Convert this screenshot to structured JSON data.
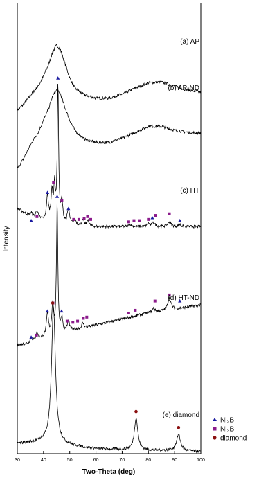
{
  "chart_data": {
    "type": "line",
    "title": "",
    "xlabel": "Two-Theta (deg)",
    "ylabel": "Intensity",
    "xlim": [
      30,
      100
    ],
    "x_ticks": [
      30,
      40,
      50,
      60,
      70,
      80,
      90,
      100
    ],
    "grid": false,
    "legend_position": "bottom-right",
    "legend": [
      {
        "label": "Ni₂B",
        "marker": "triangle",
        "color": "#1a1aa0"
      },
      {
        "label": "Ni₃B",
        "marker": "square",
        "color": "#8b1a8b"
      },
      {
        "label": "diamond",
        "marker": "circle",
        "color": "#8b1010"
      }
    ],
    "series": [
      {
        "name": "(a) AP",
        "baseline": 8.55,
        "points": [
          [
            30,
            0.0
          ],
          [
            32,
            0.12
          ],
          [
            34,
            0.28
          ],
          [
            36,
            0.45
          ],
          [
            38,
            0.6
          ],
          [
            40,
            0.85
          ],
          [
            42,
            1.15
          ],
          [
            43.5,
            1.45
          ],
          [
            45,
            1.62
          ],
          [
            46.5,
            1.5
          ],
          [
            48,
            1.2
          ],
          [
            50,
            0.8
          ],
          [
            52,
            0.55
          ],
          [
            55,
            0.4
          ],
          [
            60,
            0.3
          ],
          [
            65,
            0.3
          ],
          [
            70,
            0.4
          ],
          [
            75,
            0.55
          ],
          [
            80,
            0.68
          ],
          [
            85,
            0.7
          ],
          [
            90,
            0.6
          ],
          [
            95,
            0.5
          ],
          [
            100,
            0.45
          ]
        ]
      },
      {
        "name": "(b) AP-ND",
        "baseline": 7.1,
        "points": [
          [
            30,
            0.0
          ],
          [
            32,
            0.2
          ],
          [
            34,
            0.45
          ],
          [
            36,
            0.7
          ],
          [
            38,
            0.9
          ],
          [
            40,
            1.2
          ],
          [
            42,
            1.5
          ],
          [
            43.5,
            1.8
          ],
          [
            45,
            1.95
          ],
          [
            46.5,
            1.85
          ],
          [
            48,
            1.55
          ],
          [
            50,
            1.2
          ],
          [
            52,
            0.95
          ],
          [
            55,
            0.75
          ],
          [
            60,
            0.65
          ],
          [
            65,
            0.65
          ],
          [
            70,
            0.75
          ],
          [
            75,
            0.9
          ],
          [
            80,
            1.05
          ],
          [
            85,
            1.05
          ],
          [
            90,
            0.95
          ],
          [
            95,
            0.9
          ],
          [
            100,
            0.88
          ]
        ]
      },
      {
        "name": "(c) HT",
        "baseline": 5.55,
        "background": [
          [
            30,
            0.55
          ],
          [
            35,
            0.35
          ],
          [
            40,
            0.25
          ],
          [
            50,
            0.15
          ],
          [
            60,
            0.1
          ],
          [
            80,
            0.1
          ],
          [
            100,
            0.1
          ]
        ],
        "peaks": [
          [
            35.3,
            0.1,
            0.5
          ],
          [
            37.5,
            0.2,
            0.5
          ],
          [
            41.5,
            0.6,
            0.45
          ],
          [
            43.2,
            0.7,
            0.4
          ],
          [
            44.2,
            0.85,
            0.35
          ],
          [
            45.5,
            3.4,
            0.3
          ],
          [
            47.0,
            0.5,
            0.4
          ],
          [
            49.5,
            0.35,
            0.5
          ],
          [
            52.0,
            0.12,
            0.5
          ],
          [
            55.0,
            0.12,
            0.5
          ],
          [
            57.0,
            0.15,
            0.4
          ],
          [
            73.0,
            0.05,
            0.6
          ],
          [
            80.0,
            0.08,
            0.6
          ],
          [
            82.0,
            0.1,
            0.6
          ],
          [
            88.0,
            0.12,
            0.7
          ],
          [
            92.0,
            0.05,
            0.6
          ]
        ],
        "markers": [
          {
            "x": 35.3,
            "y": 0.25,
            "type": "triangle"
          },
          {
            "x": 37.5,
            "y": 0.35,
            "type": "square"
          },
          {
            "x": 41.5,
            "y": 0.95,
            "type": "triangle"
          },
          {
            "x": 43.8,
            "y": 1.2,
            "type": "square"
          },
          {
            "x": 45.5,
            "y": 3.8,
            "type": "triangle"
          },
          {
            "x": 47.0,
            "y": 0.75,
            "type": "square"
          },
          {
            "x": 49.5,
            "y": 0.55,
            "type": "triangle"
          },
          {
            "x": 51.5,
            "y": 0.28,
            "type": "square"
          },
          {
            "x": 53.5,
            "y": 0.28,
            "type": "square"
          },
          {
            "x": 55.5,
            "y": 0.3,
            "type": "square"
          },
          {
            "x": 56.8,
            "y": 0.35,
            "type": "square"
          },
          {
            "x": 58.0,
            "y": 0.28,
            "type": "square"
          },
          {
            "x": 72.5,
            "y": 0.22,
            "type": "square"
          },
          {
            "x": 74.5,
            "y": 0.25,
            "type": "square"
          },
          {
            "x": 76.5,
            "y": 0.25,
            "type": "square"
          },
          {
            "x": 80.0,
            "y": 0.28,
            "type": "square"
          },
          {
            "x": 81.5,
            "y": 0.32,
            "type": "triangle"
          },
          {
            "x": 82.8,
            "y": 0.38,
            "type": "square"
          },
          {
            "x": 88.0,
            "y": 0.42,
            "type": "square"
          },
          {
            "x": 92.0,
            "y": 0.25,
            "type": "triangle"
          }
        ]
      },
      {
        "name": "(d) HT-ND",
        "baseline": 2.65,
        "background": [
          [
            30,
            0.05
          ],
          [
            35,
            0.1
          ],
          [
            40,
            0.25
          ],
          [
            50,
            0.4
          ],
          [
            60,
            0.55
          ],
          [
            70,
            0.7
          ],
          [
            80,
            0.85
          ],
          [
            90,
            0.95
          ],
          [
            100,
            1.05
          ]
        ],
        "peaks": [
          [
            35.3,
            0.12,
            0.5
          ],
          [
            37.5,
            0.18,
            0.5
          ],
          [
            41.5,
            0.55,
            0.45
          ],
          [
            43.5,
            0.75,
            0.4
          ],
          [
            45.2,
            3.3,
            0.3
          ],
          [
            47.0,
            0.35,
            0.4
          ],
          [
            49.5,
            0.25,
            0.5
          ],
          [
            55.0,
            0.12,
            0.5
          ],
          [
            82.0,
            0.1,
            0.6
          ],
          [
            88.0,
            0.3,
            0.7
          ]
        ],
        "markers": [
          {
            "x": 35.3,
            "y": 0.25,
            "type": "triangle"
          },
          {
            "x": 37.3,
            "y": 0.3,
            "type": "square"
          },
          {
            "x": 41.5,
            "y": 0.9,
            "type": "triangle"
          },
          {
            "x": 43.6,
            "y": 1.1,
            "type": "square"
          },
          {
            "x": 45.2,
            "y": 3.75,
            "type": "triangle"
          },
          {
            "x": 46.9,
            "y": 0.9,
            "type": "triangle"
          },
          {
            "x": 49.0,
            "y": 0.65,
            "type": "square"
          },
          {
            "x": 51.2,
            "y": 0.62,
            "type": "square"
          },
          {
            "x": 53.0,
            "y": 0.65,
            "type": "square"
          },
          {
            "x": 55.2,
            "y": 0.72,
            "type": "square"
          },
          {
            "x": 56.5,
            "y": 0.75,
            "type": "square"
          },
          {
            "x": 72.5,
            "y": 0.85,
            "type": "square"
          },
          {
            "x": 75.0,
            "y": 0.92,
            "type": "square"
          },
          {
            "x": 82.5,
            "y": 1.15,
            "type": "square"
          },
          {
            "x": 88.0,
            "y": 1.3,
            "type": "square"
          },
          {
            "x": 92.0,
            "y": 1.15,
            "type": "triangle"
          }
        ]
      },
      {
        "name": "(e) diamond",
        "baseline": 0.0,
        "background": [
          [
            30,
            0.25
          ],
          [
            40,
            0.3
          ],
          [
            50,
            0.2
          ],
          [
            60,
            0.12
          ],
          [
            70,
            0.1
          ],
          [
            80,
            0.08
          ],
          [
            90,
            0.08
          ],
          [
            100,
            0.05
          ]
        ],
        "peaks": [
          [
            43.8,
            3.4,
            0.9
          ],
          [
            75.3,
            0.8,
            0.8
          ],
          [
            91.5,
            0.4,
            0.9
          ]
        ],
        "markers": [
          {
            "x": 43.5,
            "y": 3.75,
            "type": "circle"
          },
          {
            "x": 75.3,
            "y": 1.05,
            "type": "circle"
          },
          {
            "x": 91.5,
            "y": 0.65,
            "type": "circle"
          }
        ]
      }
    ]
  }
}
